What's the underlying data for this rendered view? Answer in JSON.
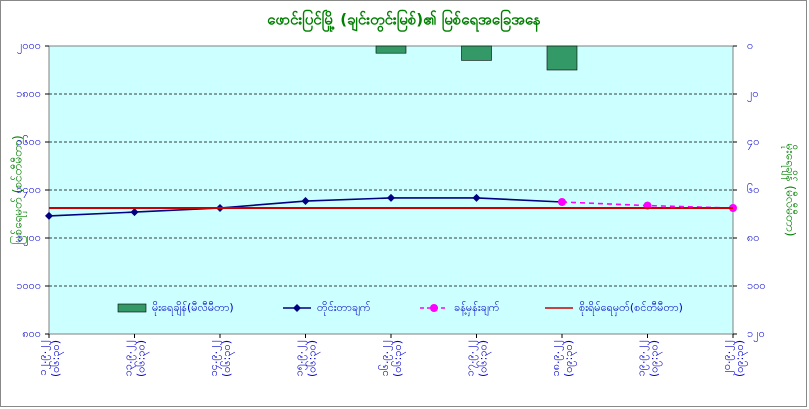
{
  "chart_data": {
    "type": "combo",
    "title": "ဖောင်းပြင်မြို့ (ချင်းတွင်းမြစ်)၏ မြစ်ရေအခြေအနေ",
    "ylabel": "မြစ်ရေမှတ် (စင်တီမီတာ)",
    "y2label": "မိုးရေချိန် (မီလီမီတာ)",
    "categories": [
      [
        "၁၂.၉.၂၂",
        "(၀၆:၃၀)"
      ],
      [
        "၁၃.၉.၂၂",
        "(၀၆:၃၀)"
      ],
      [
        "၁၄.၉.၂၂",
        "(၀၆:၃၀)"
      ],
      [
        "၁၅.၉.၂၂",
        "(၀၆:၃၀)"
      ],
      [
        "၁၆.၉.၂၂",
        "(၀၆:၃၀)"
      ],
      [
        "၁၇.၉.၂၂",
        "(၀၆:၃၀)"
      ],
      [
        "၁၈.၉.၂၂",
        "(၀၉:၃၀)"
      ],
      [
        "၁၉.၉.၂၂",
        "(၀၉:၃၀)"
      ],
      [
        "၂၀.၉.၂၂",
        "(၀၉:၃၀)"
      ]
    ],
    "ylim": [
      800,
      2000
    ],
    "yticks": [
      {
        "value": 800,
        "label": "၈၀၀"
      },
      {
        "value": 1000,
        "label": "၁၀၀၀"
      },
      {
        "value": 1200,
        "label": "၁၂၀၀"
      },
      {
        "value": 1400,
        "label": "၁၄၀၀"
      },
      {
        "value": 1600,
        "label": "၁၆၀၀"
      },
      {
        "value": 1800,
        "label": "၁၈၀၀"
      },
      {
        "value": 2000,
        "label": "၂၀၀၀"
      }
    ],
    "y2lim": [
      120,
      0
    ],
    "y2ticks": [
      {
        "value": 0,
        "label": "၀"
      },
      {
        "value": 20,
        "label": "၂၀"
      },
      {
        "value": 40,
        "label": "၄၀"
      },
      {
        "value": 60,
        "label": "၆၀"
      },
      {
        "value": 80,
        "label": "၈၀"
      },
      {
        "value": 100,
        "label": "၁၀၀"
      },
      {
        "value": 120,
        "label": "၁၂၀"
      }
    ],
    "grid": true,
    "series": [
      {
        "name": "မိုးရေချိန်(မီလီမီတာ)",
        "type": "bar",
        "axis": "y2",
        "color": "#339966",
        "values": [
          null,
          null,
          null,
          null,
          3,
          6,
          10,
          null,
          null
        ]
      },
      {
        "name": "တိုင်းတာချက်",
        "type": "line",
        "marker": "diamond",
        "color": "#000080",
        "values": [
          1292,
          1308,
          1325,
          1354,
          1367,
          1367,
          1350,
          null,
          null
        ]
      },
      {
        "name": "ခန့်မှန်းချက်",
        "type": "line",
        "marker": "circle",
        "dashed": true,
        "color": "#ff00ff",
        "values": [
          null,
          null,
          null,
          null,
          null,
          null,
          1350,
          1335,
          1325
        ]
      },
      {
        "name": "စိုးရိမ်ရေမှတ်(စင်တီမီတာ)",
        "type": "line",
        "color": "#cc0000",
        "values": [
          1325,
          1325,
          1325,
          1325,
          1325,
          1325,
          1325,
          1325,
          1325
        ]
      }
    ]
  }
}
